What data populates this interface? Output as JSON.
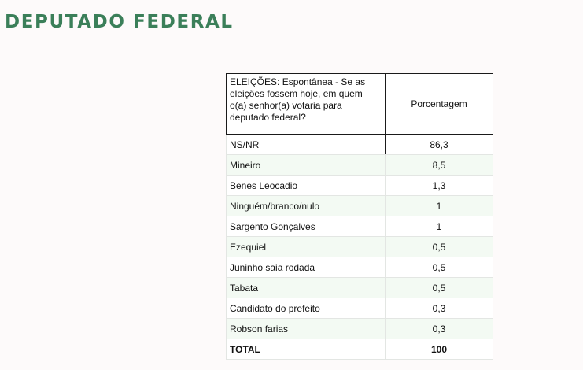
{
  "page": {
    "title": "DEPUTADO FEDERAL"
  },
  "table": {
    "header_question": "ELEIÇÕES: Espontânea - Se as eleições fossem hoje, em quem o(a) senhor(a) votaria para deputado federal?",
    "header_value": "Porcentagem",
    "rows": [
      {
        "label": "NS/NR",
        "value": "86,3"
      },
      {
        "label": "Mineiro",
        "value": "8,5"
      },
      {
        "label": "Benes Leocadio",
        "value": "1,3"
      },
      {
        "label": "Ninguém/branco/nulo",
        "value": "1"
      },
      {
        "label": "Sargento Gonçalves",
        "value": "1"
      },
      {
        "label": "Ezequiel",
        "value": "0,5"
      },
      {
        "label": "Juninho saia rodada",
        "value": "0,5"
      },
      {
        "label": "Tabata",
        "value": "0,5"
      },
      {
        "label": "Candidato do prefeito",
        "value": "0,3"
      },
      {
        "label": "Robson farias",
        "value": "0,3"
      }
    ],
    "total": {
      "label": "TOTAL",
      "value": "100"
    }
  },
  "colors": {
    "title": "#3b7f59",
    "row_tint": "#f3faf3"
  }
}
